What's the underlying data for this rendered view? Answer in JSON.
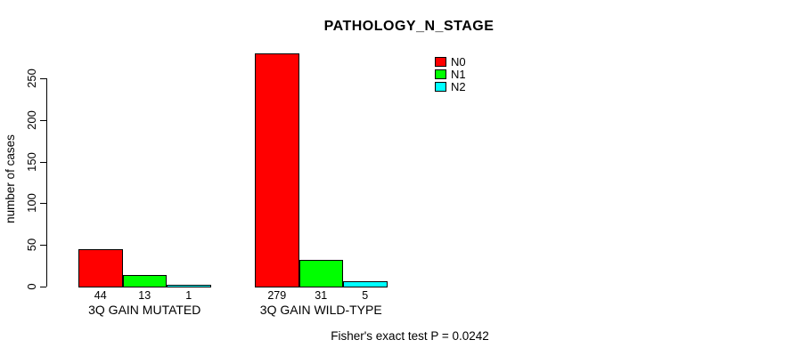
{
  "chart_data": {
    "type": "bar",
    "title": "PATHOLOGY_N_STAGE",
    "ylabel": "number of cases",
    "xlabel": "",
    "categories": [
      "3Q GAIN MUTATED",
      "3Q GAIN WILD-TYPE"
    ],
    "series": [
      {
        "name": "N0",
        "color": "#FF0000",
        "values": [
          44,
          279
        ]
      },
      {
        "name": "N1",
        "color": "#00FF00",
        "values": [
          13,
          31
        ]
      },
      {
        "name": "N2",
        "color": "#00FFFF",
        "values": [
          1,
          5
        ]
      }
    ],
    "yticks": [
      0,
      50,
      100,
      150,
      200,
      250
    ],
    "ylim": [
      0,
      250
    ],
    "grid": false,
    "legend_position": "top-right",
    "bar_value_labels": true,
    "annotation": "Fisher's exact test P = 0.0242"
  }
}
